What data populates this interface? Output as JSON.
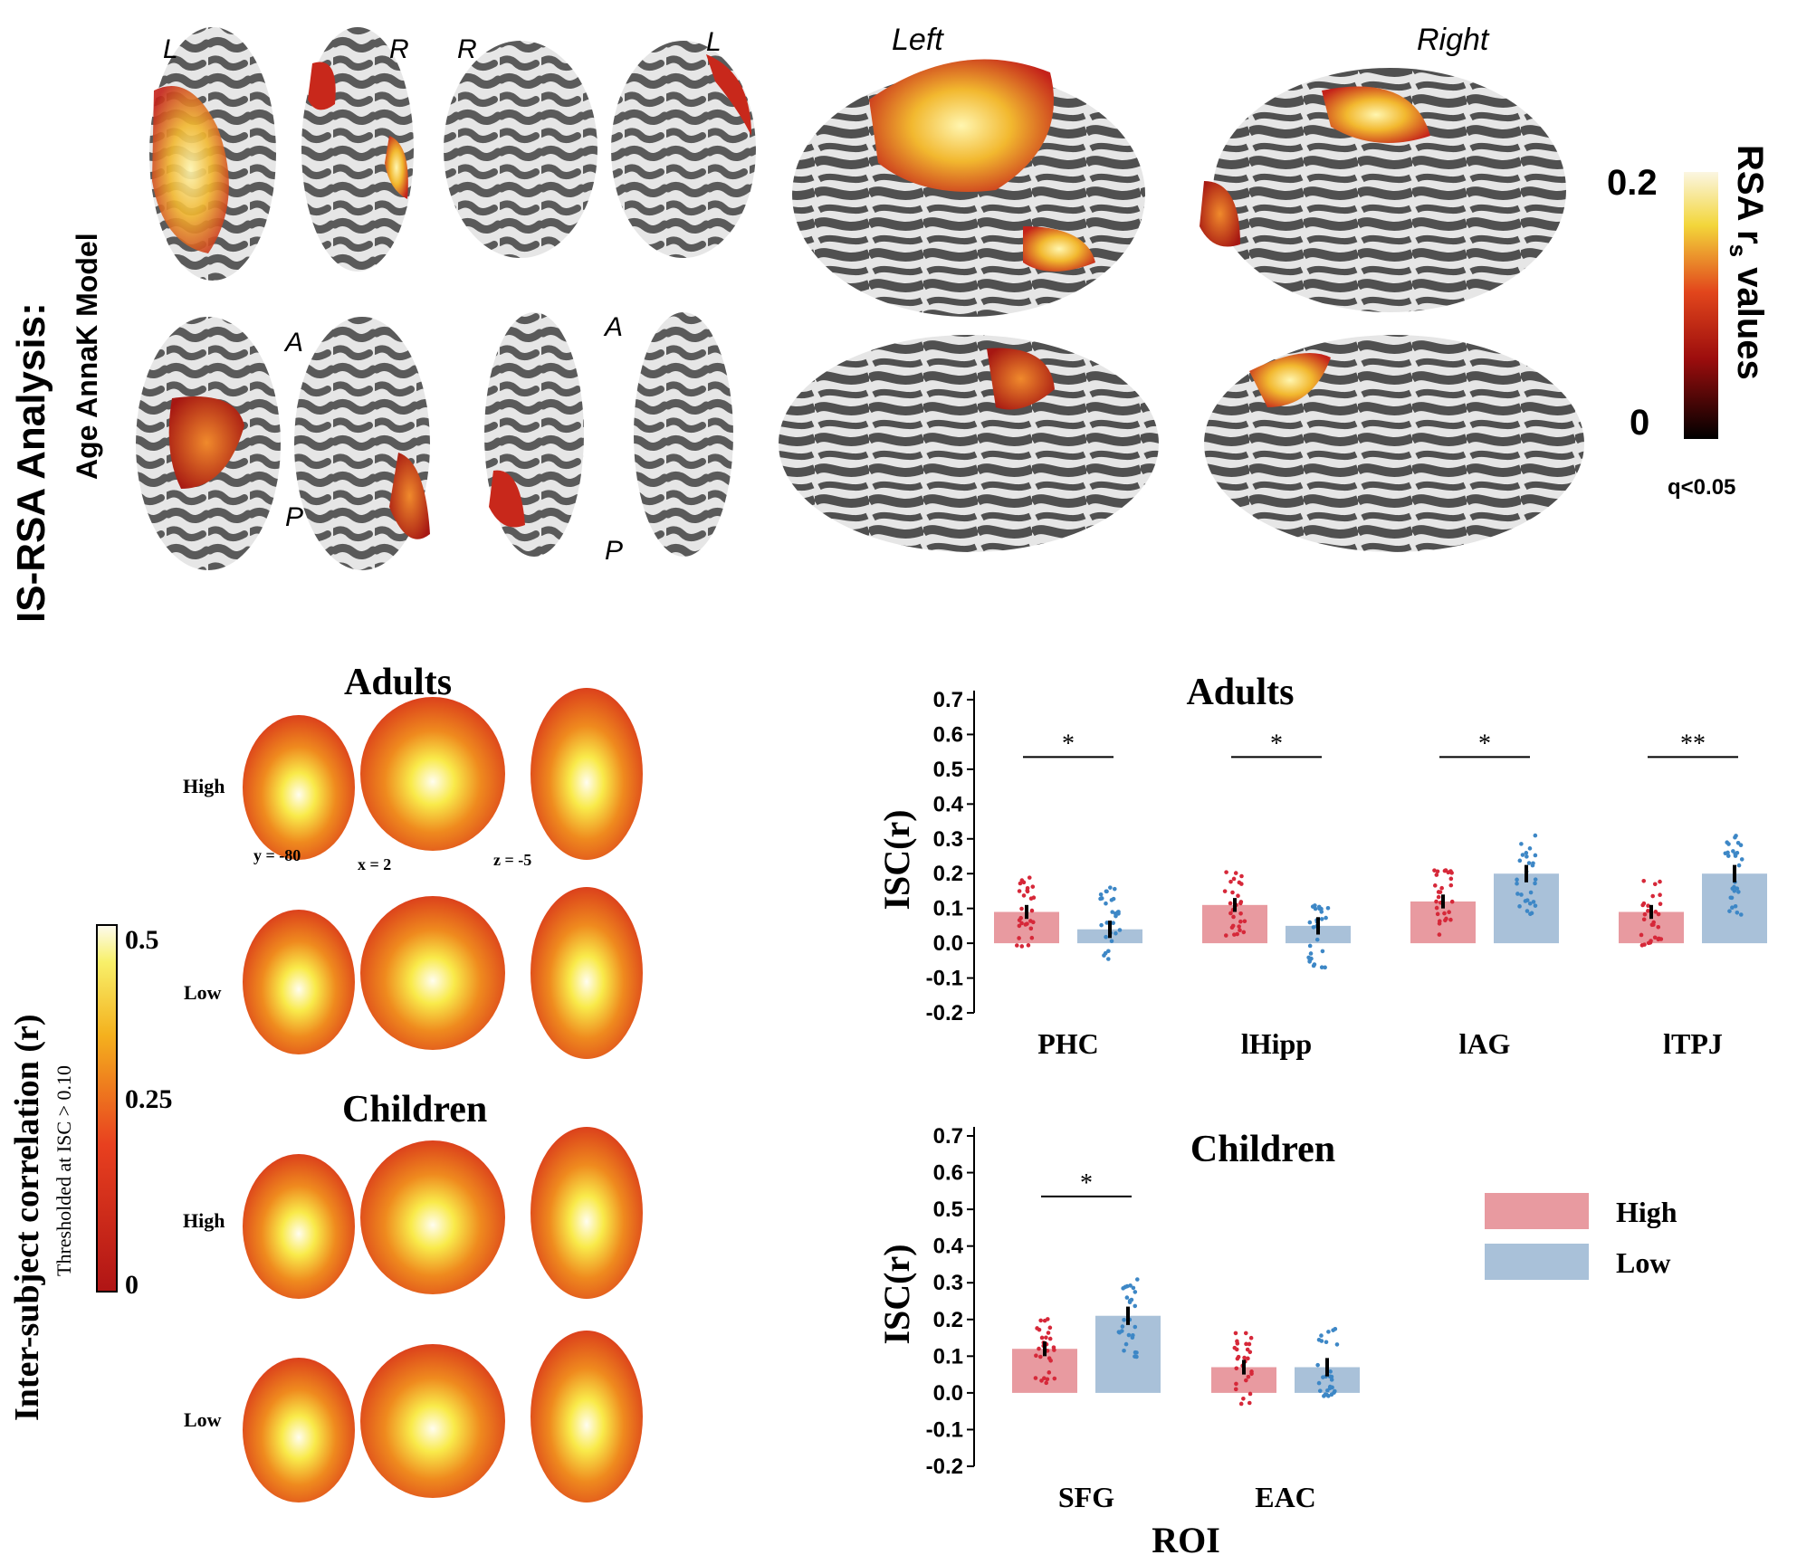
{
  "top": {
    "title": "IS-RSA Analysis:",
    "subtitle": "Age AnnaK Model",
    "orient_small": [
      "L",
      "R",
      "R",
      "L",
      "A",
      "P",
      "A",
      "P"
    ],
    "hemis": [
      "Left",
      "Right"
    ],
    "colorbar": {
      "title": "RSA r",
      "sub": "s",
      "title2": " values",
      "max": "0.2",
      "min": "0",
      "q": "q<0.05"
    }
  },
  "mid": {
    "adults_title": "Adults",
    "children_title": "Children",
    "rows": [
      "High",
      "Low",
      "High",
      "Low"
    ],
    "coords": [
      "y = -80",
      "x = 2",
      "z = -5"
    ],
    "cbar_label": "Inter-subject correlation (r)",
    "cbar_sub": "Thresholded at ISC > 0.10",
    "cbar_ticks": [
      "0.5",
      "0.25",
      "0"
    ]
  },
  "colors": {
    "high": "#e89aa0",
    "low": "#a9c1d9",
    "high_dot": "#d62839",
    "low_dot": "#3d87c6"
  },
  "chart_data": [
    {
      "type": "bar",
      "title": "Adults",
      "ylabel": "ISC(r)",
      "xlabel": "",
      "ylim": [
        -0.2,
        0.7
      ],
      "yticks": [
        "0.7",
        "0.6",
        "0.5",
        "0.4",
        "0.3",
        "0.2",
        "0.1",
        "0.0",
        "-0.1",
        "-0.2"
      ],
      "categories": [
        "PHC",
        "lHipp",
        "lAG",
        "lTPJ"
      ],
      "series": [
        {
          "name": "High",
          "values": [
            0.09,
            0.11,
            0.12,
            0.09
          ]
        },
        {
          "name": "Low",
          "values": [
            0.04,
            0.05,
            0.2,
            0.2
          ]
        }
      ],
      "significance": [
        "*",
        "*",
        "*",
        "**"
      ]
    },
    {
      "type": "bar",
      "title": "Children",
      "ylabel": "ISC(r)",
      "xlabel": "ROI",
      "ylim": [
        -0.2,
        0.7
      ],
      "yticks": [
        "0.7",
        "0.6",
        "0.5",
        "0.4",
        "0.3",
        "0.2",
        "0.1",
        "0.0",
        "-0.1",
        "-0.2"
      ],
      "categories": [
        "SFG",
        "EAC"
      ],
      "series": [
        {
          "name": "High",
          "values": [
            0.12,
            0.07
          ]
        },
        {
          "name": "Low",
          "values": [
            0.21,
            0.07
          ]
        }
      ],
      "significance": [
        "*",
        ""
      ],
      "legend": [
        "High",
        "Low"
      ]
    }
  ]
}
